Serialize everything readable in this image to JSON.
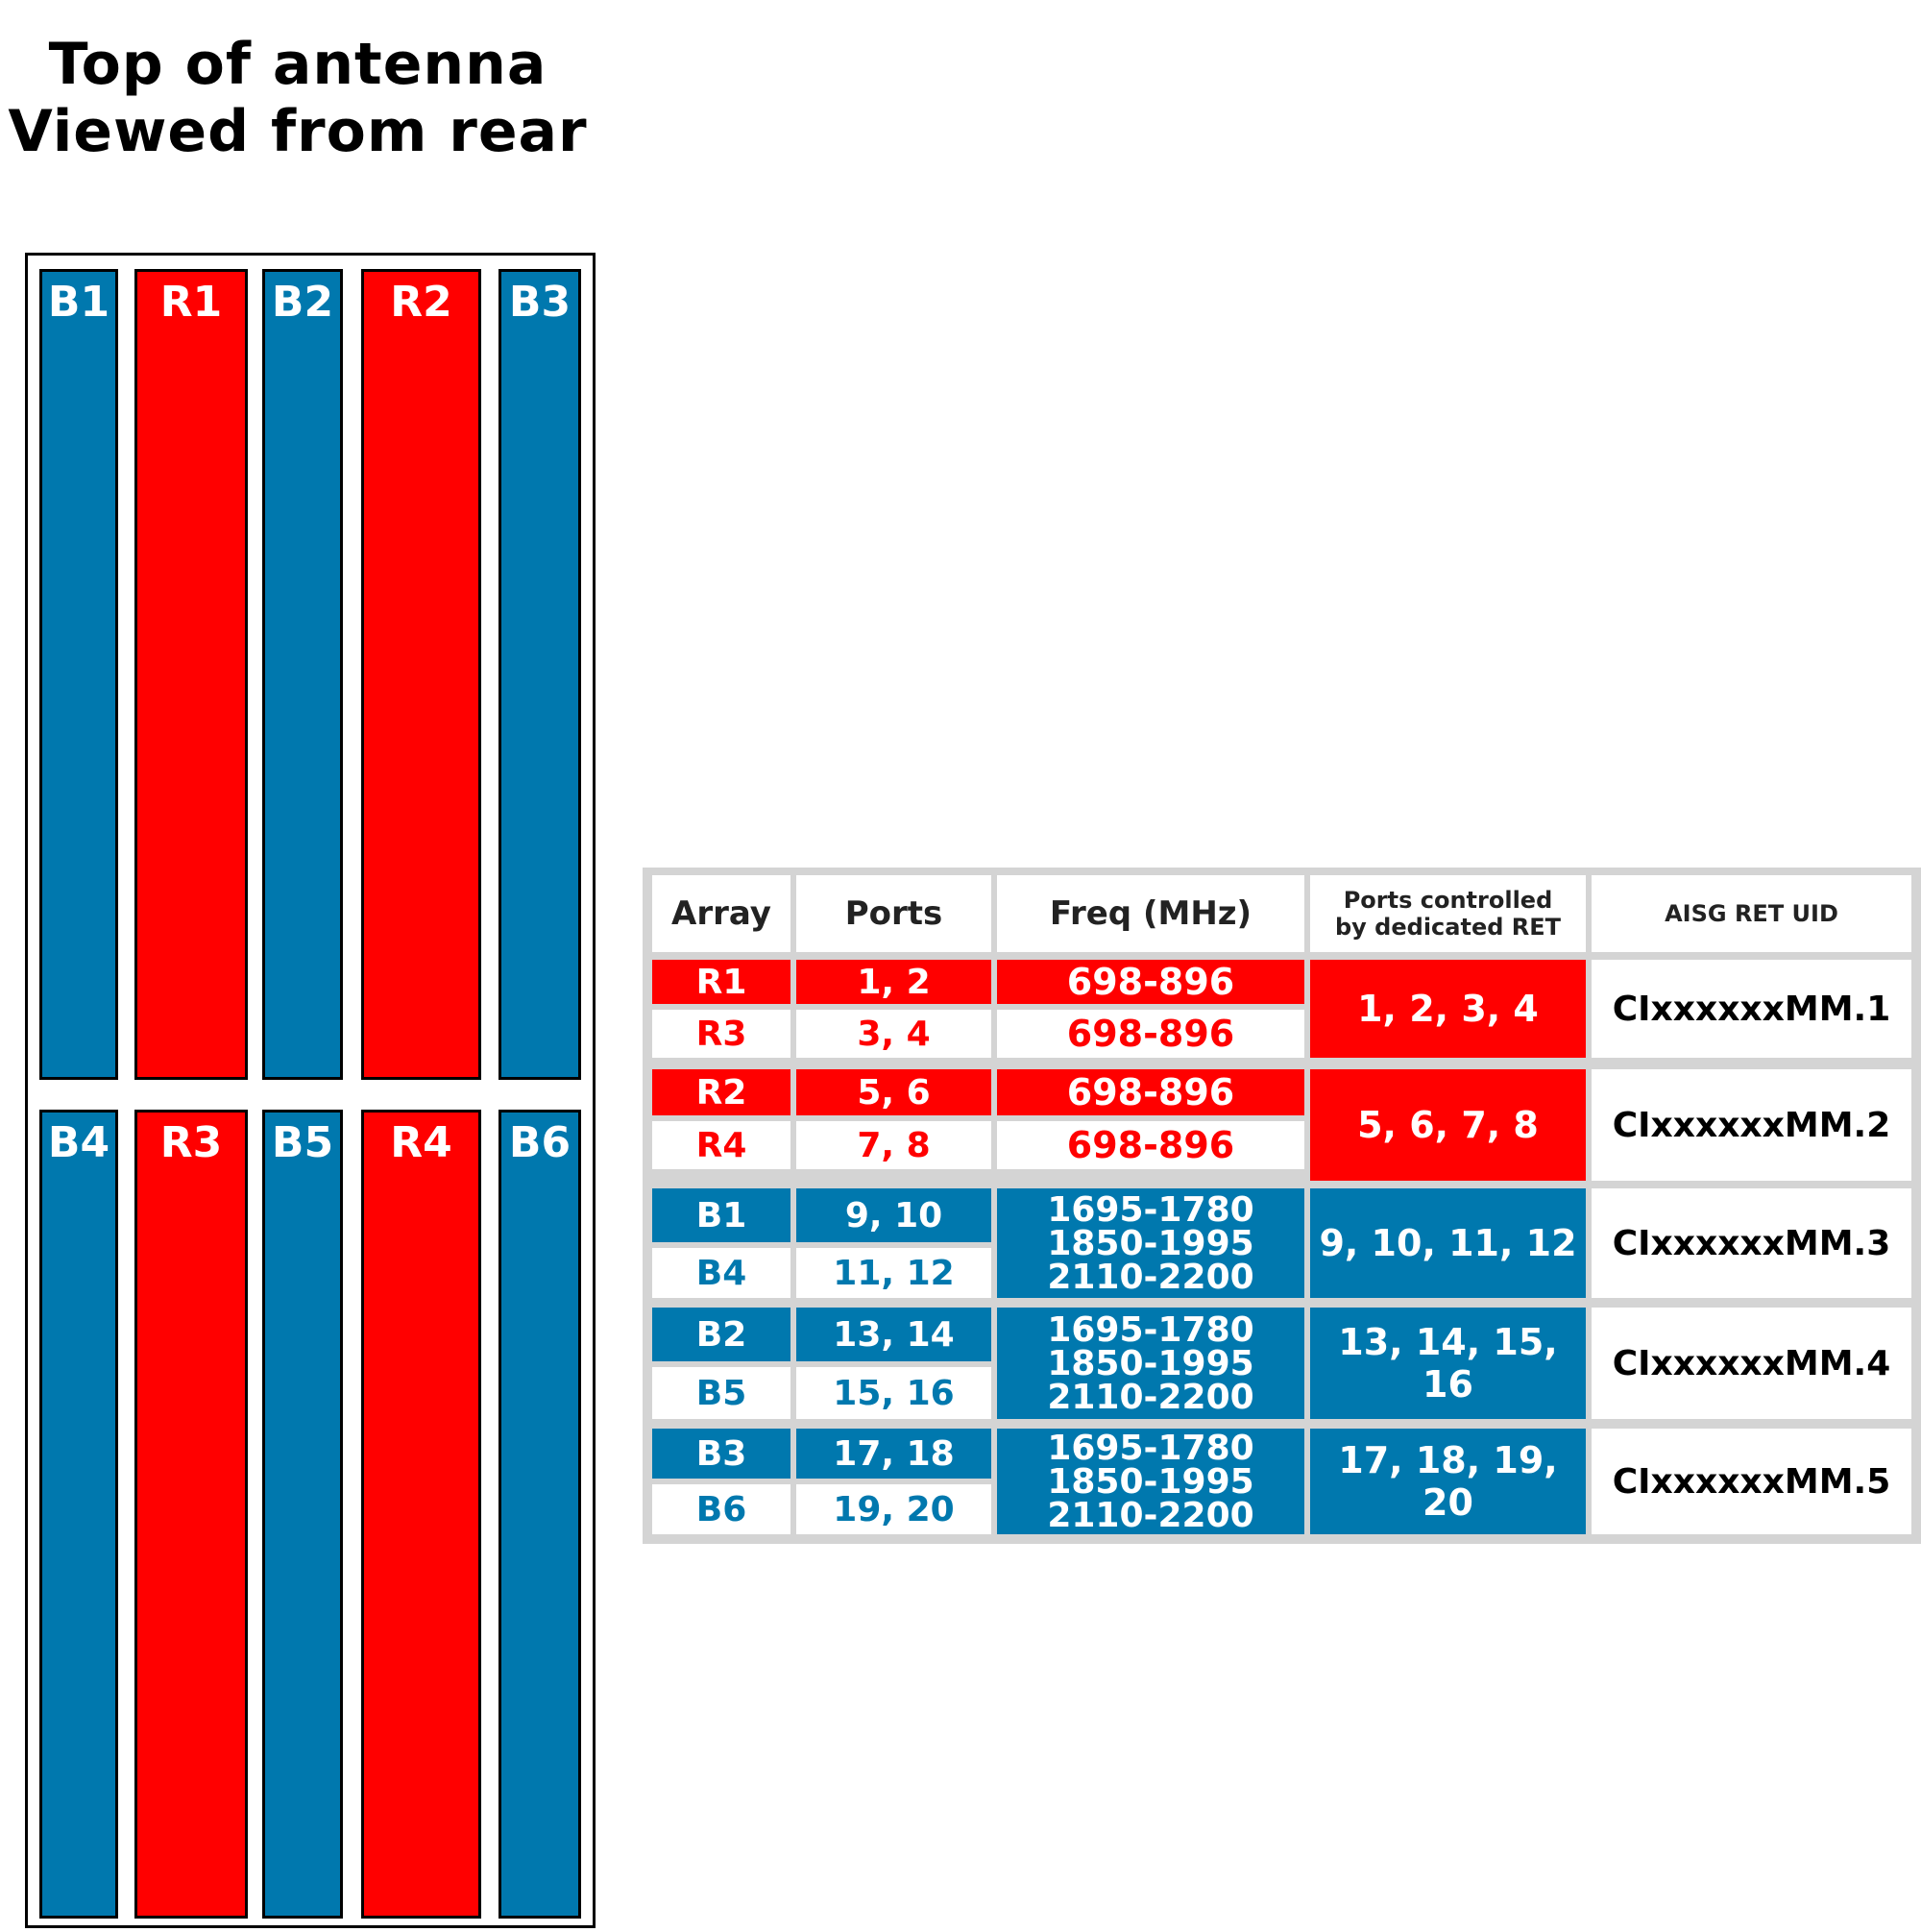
{
  "title": {
    "line1": "Top of antenna",
    "line2": "Viewed from rear"
  },
  "colors": {
    "blue": "#0078AE",
    "red": "#FF0000",
    "grid": "#d4d4d4"
  },
  "antenna": {
    "top_row": [
      "B1",
      "R1",
      "B2",
      "R2",
      "B3"
    ],
    "bottom_row": [
      "B4",
      "R3",
      "B5",
      "R4",
      "B6"
    ]
  },
  "table": {
    "headers": {
      "array": "Array",
      "ports": "Ports",
      "freq": "Freq (MHz)",
      "ret_line1": "Ports controlled",
      "ret_line2": "by dedicated RET",
      "uid": "AISG RET UID"
    },
    "groups": [
      {
        "color": "red",
        "rows": [
          {
            "array": "R1",
            "ports": "1, 2",
            "freq": "698-896"
          },
          {
            "array": "R3",
            "ports": "3, 4",
            "freq": "698-896"
          }
        ],
        "ret": "1, 2, 3, 4",
        "uid": "CIxxxxxxMM.1"
      },
      {
        "color": "red",
        "rows": [
          {
            "array": "R2",
            "ports": "5, 6",
            "freq": "698-896"
          },
          {
            "array": "R4",
            "ports": "7, 8",
            "freq": "698-896"
          }
        ],
        "ret": "5, 6, 7, 8",
        "uid": "CIxxxxxxMM.2"
      },
      {
        "color": "blue",
        "rows": [
          {
            "array": "B1",
            "ports": "9, 10"
          },
          {
            "array": "B4",
            "ports": "11, 12"
          }
        ],
        "freq": [
          "1695-1780",
          "1850-1995",
          "2110-2200"
        ],
        "ret": "9, 10, 11, 12",
        "uid": "CIxxxxxxMM.3"
      },
      {
        "color": "blue",
        "rows": [
          {
            "array": "B2",
            "ports": "13, 14"
          },
          {
            "array": "B5",
            "ports": "15, 16"
          }
        ],
        "freq": [
          "1695-1780",
          "1850-1995",
          "2110-2200"
        ],
        "ret": "13, 14, 15, 16",
        "uid": "CIxxxxxxMM.4"
      },
      {
        "color": "blue",
        "rows": [
          {
            "array": "B3",
            "ports": "17, 18"
          },
          {
            "array": "B6",
            "ports": "19, 20"
          }
        ],
        "freq": [
          "1695-1780",
          "1850-1995",
          "2110-2200"
        ],
        "ret": "17, 18, 19, 20",
        "uid": "CIxxxxxxMM.5"
      }
    ]
  }
}
